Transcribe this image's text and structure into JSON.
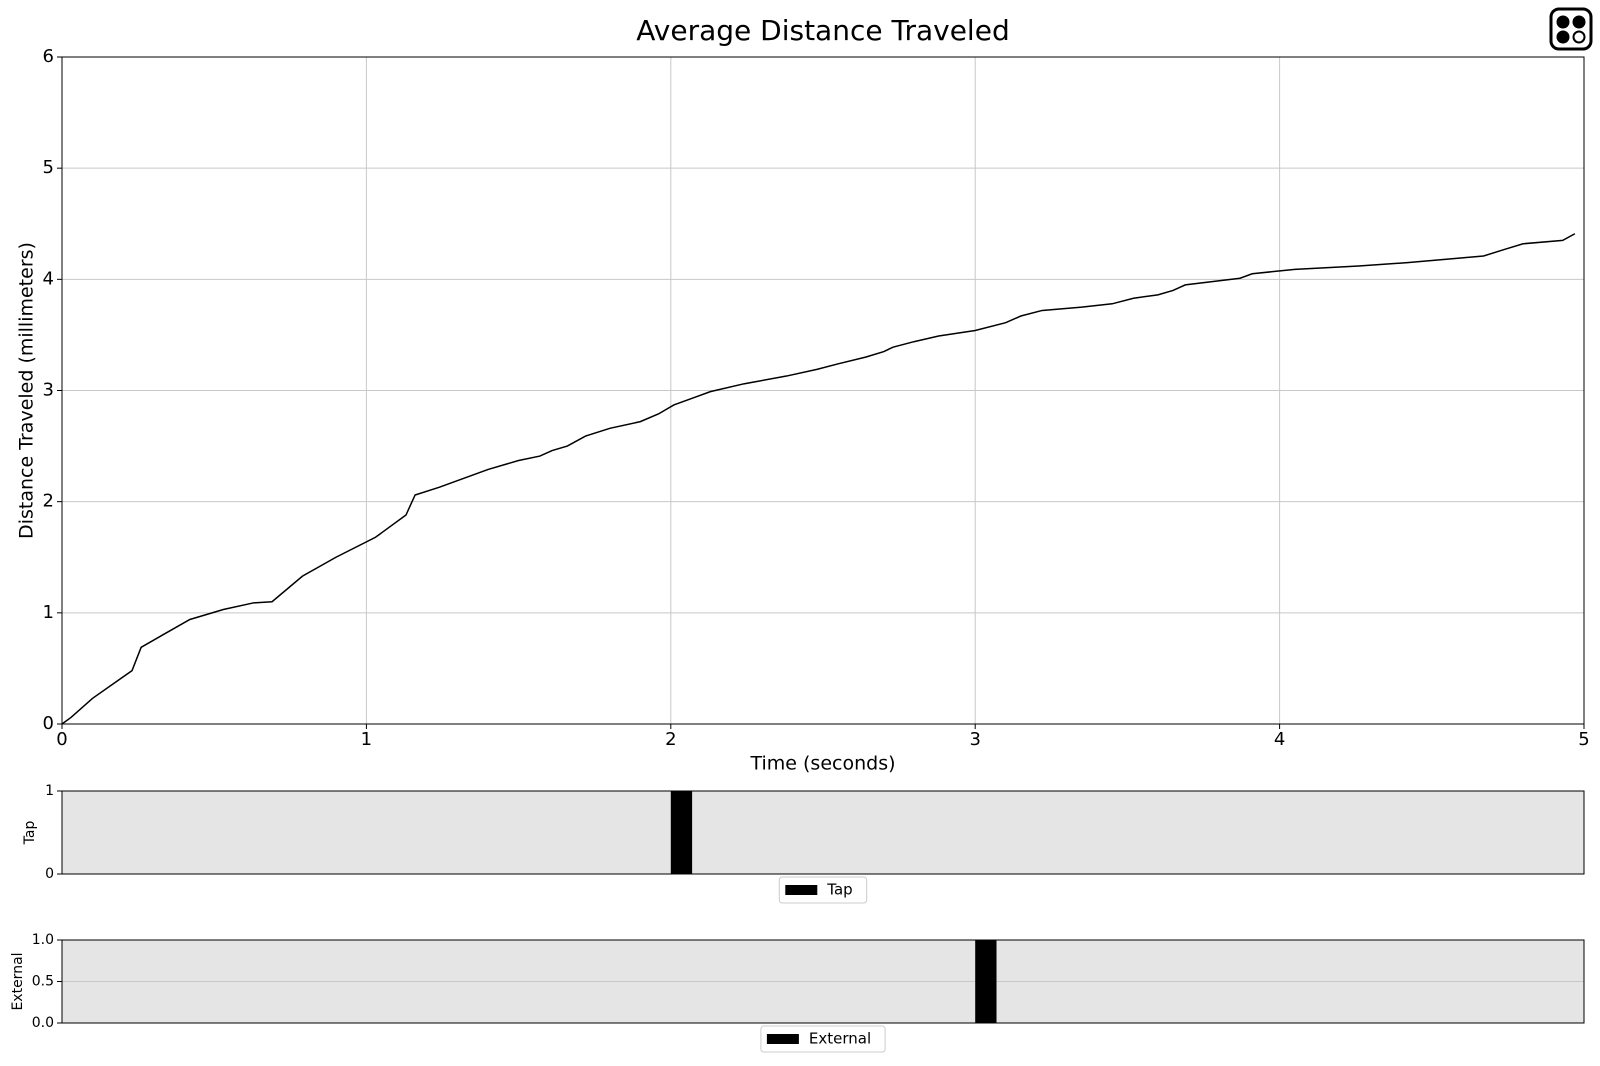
{
  "chart_data": [
    {
      "type": "line",
      "title": "Average Distance Traveled",
      "xlabel": "Time (seconds)",
      "ylabel": "Distance Traveled (millimeters)",
      "color": "#000000",
      "x": [
        0,
        0.03,
        0.1,
        0.23,
        0.26,
        0.33,
        0.42,
        0.53,
        0.63,
        0.69,
        0.79,
        0.9,
        1.03,
        1.13,
        1.16,
        1.24,
        1.32,
        1.4,
        1.5,
        1.57,
        1.61,
        1.66,
        1.72,
        1.8,
        1.9,
        1.96,
        2.01,
        2.08,
        2.13,
        2.24,
        2.38,
        2.48,
        2.55,
        2.64,
        2.7,
        2.73,
        2.8,
        2.88,
        3.0,
        3.1,
        3.15,
        3.22,
        3.35,
        3.45,
        3.52,
        3.6,
        3.65,
        3.69,
        3.87,
        3.91,
        4.05,
        4.26,
        4.42,
        4.67,
        4.74,
        4.8,
        4.93,
        4.97
      ],
      "values": [
        0,
        0.06,
        0.23,
        0.48,
        0.69,
        0.8,
        0.94,
        1.03,
        1.09,
        1.1,
        1.33,
        1.5,
        1.68,
        1.88,
        2.06,
        2.13,
        2.21,
        2.29,
        2.37,
        2.41,
        2.46,
        2.5,
        2.59,
        2.66,
        2.72,
        2.79,
        2.87,
        2.94,
        2.99,
        3.06,
        3.13,
        3.19,
        3.24,
        3.3,
        3.35,
        3.39,
        3.44,
        3.49,
        3.54,
        3.61,
        3.67,
        3.72,
        3.75,
        3.78,
        3.83,
        3.86,
        3.9,
        3.95,
        4.01,
        4.05,
        4.09,
        4.12,
        4.15,
        4.21,
        4.27,
        4.32,
        4.35,
        4.41
      ],
      "xlim": [
        0,
        5
      ],
      "xticks": [
        0,
        1,
        2,
        3,
        4,
        5
      ],
      "ylim": [
        0,
        6
      ],
      "yticks": [
        0,
        1,
        2,
        3,
        4,
        5,
        6
      ],
      "grid": true
    },
    {
      "type": "bar",
      "ylabel": "Tap",
      "xlim": [
        0,
        5
      ],
      "ylim": [
        0,
        1
      ],
      "yticks": [
        0,
        1
      ],
      "grid": true,
      "series": [
        {
          "name": "Tap",
          "color": "#000000",
          "x": [
            2.0
          ],
          "width": 0.07,
          "values": [
            1
          ]
        }
      ]
    },
    {
      "type": "bar",
      "ylabel": "External",
      "xlim": [
        0,
        5
      ],
      "ylim": [
        0,
        1
      ],
      "yticks": [
        {
          "value": 0,
          "label": "0.0"
        },
        {
          "value": 0.5,
          "label": "0.5"
        },
        {
          "value": 1,
          "label": "1.0"
        }
      ],
      "grid": true,
      "series": [
        {
          "name": "External",
          "color": "#000000",
          "x": [
            3.0
          ],
          "width": 0.07,
          "values": [
            1
          ]
        }
      ]
    }
  ]
}
